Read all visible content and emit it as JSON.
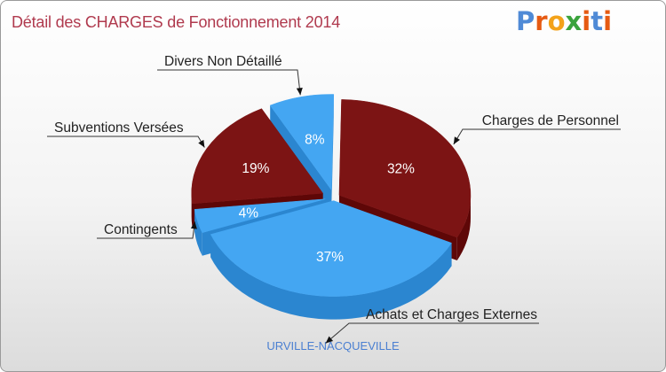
{
  "title": "Détail des CHARGES de Fonctionnement 2014",
  "logo": {
    "text": "Proxiti",
    "letter_colors": [
      "#4f8ad6",
      "#e65a12",
      "#f3a21a",
      "#3aa33c",
      "#e65a12",
      "#4f8ad6",
      "#e65a12"
    ]
  },
  "colors": {
    "dark_red": "#7c1414",
    "light_blue": "#44a6f2",
    "title": "#b03a4e",
    "subtitle": "#4a7fd1"
  },
  "chart_data": {
    "type": "pie",
    "title": "Détail des CHARGES de Fonctionnement 2014",
    "subtitle": "URVILLE-NACQUEVILLE",
    "slices": [
      {
        "name": "Charges de Personnel",
        "pct_label": "32%",
        "value": 32,
        "color": "#7c1414"
      },
      {
        "name": "Achats et Charges Externes",
        "pct_label": "37%",
        "value": 37,
        "color": "#44a6f2"
      },
      {
        "name": "Contingents",
        "pct_label": "4%",
        "value": 4,
        "color": "#44a6f2"
      },
      {
        "name": "Subventions Versées",
        "pct_label": "19%",
        "value": 19,
        "color": "#7c1414"
      },
      {
        "name": "Divers Non Détaillé",
        "pct_label": "8%",
        "value": 8,
        "color": "#44a6f2"
      }
    ]
  }
}
